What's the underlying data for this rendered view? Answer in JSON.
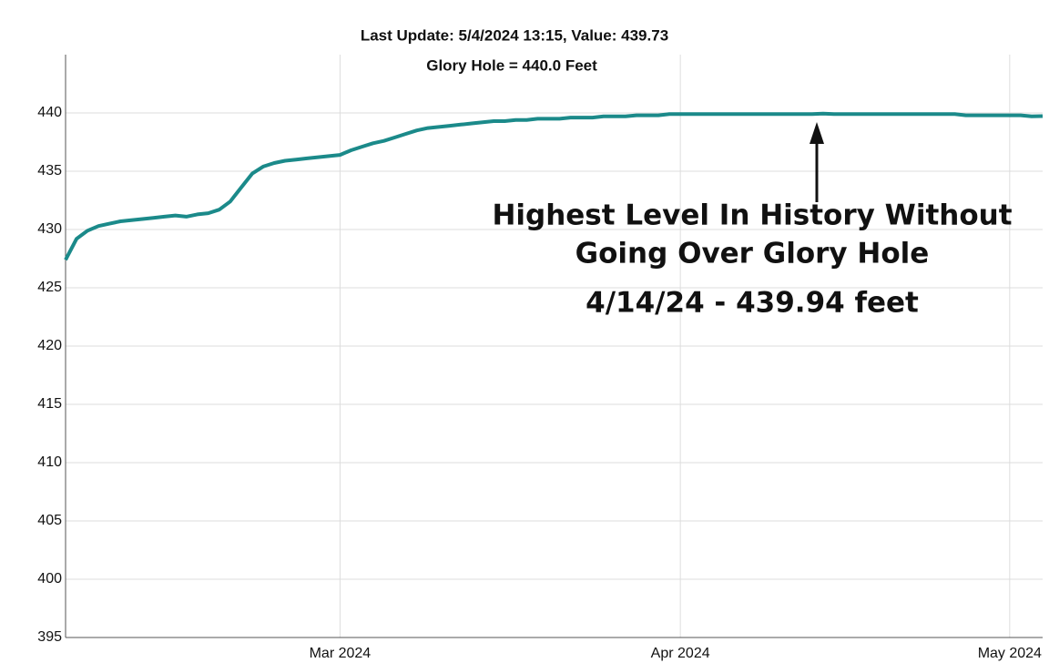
{
  "chart_data": {
    "type": "line",
    "title": "Last Update: 5/4/2024 13:15, Value: 439.73",
    "subtitle": "Glory Hole = 440.0 Feet",
    "annotations": [
      "Highest Level In History Without",
      "Going Over Glory Hole",
      "4/14/24 - 439.94 feet"
    ],
    "x": [
      "2024-02-05",
      "2024-02-06",
      "2024-02-07",
      "2024-02-08",
      "2024-02-09",
      "2024-02-10",
      "2024-02-11",
      "2024-02-12",
      "2024-02-13",
      "2024-02-14",
      "2024-02-15",
      "2024-02-16",
      "2024-02-17",
      "2024-02-18",
      "2024-02-19",
      "2024-02-20",
      "2024-02-21",
      "2024-02-22",
      "2024-02-23",
      "2024-02-24",
      "2024-02-25",
      "2024-02-26",
      "2024-02-27",
      "2024-02-28",
      "2024-02-29",
      "2024-03-01",
      "2024-03-02",
      "2024-03-03",
      "2024-03-04",
      "2024-03-05",
      "2024-03-06",
      "2024-03-07",
      "2024-03-08",
      "2024-03-09",
      "2024-03-10",
      "2024-03-11",
      "2024-03-12",
      "2024-03-13",
      "2024-03-14",
      "2024-03-15",
      "2024-03-16",
      "2024-03-17",
      "2024-03-18",
      "2024-03-19",
      "2024-03-20",
      "2024-03-21",
      "2024-03-22",
      "2024-03-23",
      "2024-03-24",
      "2024-03-25",
      "2024-03-26",
      "2024-03-27",
      "2024-03-28",
      "2024-03-29",
      "2024-03-30",
      "2024-03-31",
      "2024-04-01",
      "2024-04-02",
      "2024-04-03",
      "2024-04-04",
      "2024-04-05",
      "2024-04-06",
      "2024-04-07",
      "2024-04-08",
      "2024-04-09",
      "2024-04-10",
      "2024-04-11",
      "2024-04-12",
      "2024-04-13",
      "2024-04-14",
      "2024-04-15",
      "2024-04-16",
      "2024-04-17",
      "2024-04-18",
      "2024-04-19",
      "2024-04-20",
      "2024-04-21",
      "2024-04-22",
      "2024-04-23",
      "2024-04-24",
      "2024-04-25",
      "2024-04-26",
      "2024-04-27",
      "2024-04-28",
      "2024-04-29",
      "2024-04-30",
      "2024-05-01",
      "2024-05-02",
      "2024-05-03",
      "2024-05-04"
    ],
    "series": [
      {
        "color": "#1b8a8a",
        "values": [
          427.4,
          429.2,
          429.9,
          430.3,
          430.5,
          430.7,
          430.8,
          430.9,
          431.0,
          431.1,
          431.2,
          431.1,
          431.3,
          431.4,
          431.7,
          432.4,
          433.6,
          434.8,
          435.4,
          435.7,
          435.9,
          436.0,
          436.1,
          436.2,
          436.3,
          436.4,
          436.8,
          437.1,
          437.4,
          437.6,
          437.9,
          438.2,
          438.5,
          438.7,
          438.8,
          438.9,
          439.0,
          439.1,
          439.2,
          439.3,
          439.3,
          439.4,
          439.4,
          439.5,
          439.5,
          439.5,
          439.6,
          439.6,
          439.6,
          439.7,
          439.7,
          439.7,
          439.8,
          439.8,
          439.8,
          439.9,
          439.9,
          439.9,
          439.9,
          439.9,
          439.9,
          439.9,
          439.9,
          439.9,
          439.9,
          439.9,
          439.9,
          439.9,
          439.9,
          439.94,
          439.9,
          439.9,
          439.9,
          439.9,
          439.9,
          439.9,
          439.9,
          439.9,
          439.9,
          439.9,
          439.9,
          439.9,
          439.8,
          439.8,
          439.8,
          439.8,
          439.8,
          439.8,
          439.7,
          439.73
        ]
      }
    ],
    "xlim": [
      "2024-02-05",
      "2024-05-04"
    ],
    "xticks": [
      {
        "value": "2024-03-01",
        "label": "Mar 2024"
      },
      {
        "value": "2024-04-01",
        "label": "Apr 2024"
      },
      {
        "value": "2024-05-01",
        "label": "May 2024"
      }
    ],
    "ylim": [
      395,
      445
    ],
    "yticks": [
      395,
      400,
      405,
      410,
      415,
      420,
      425,
      430,
      435,
      440
    ],
    "grid": true
  }
}
